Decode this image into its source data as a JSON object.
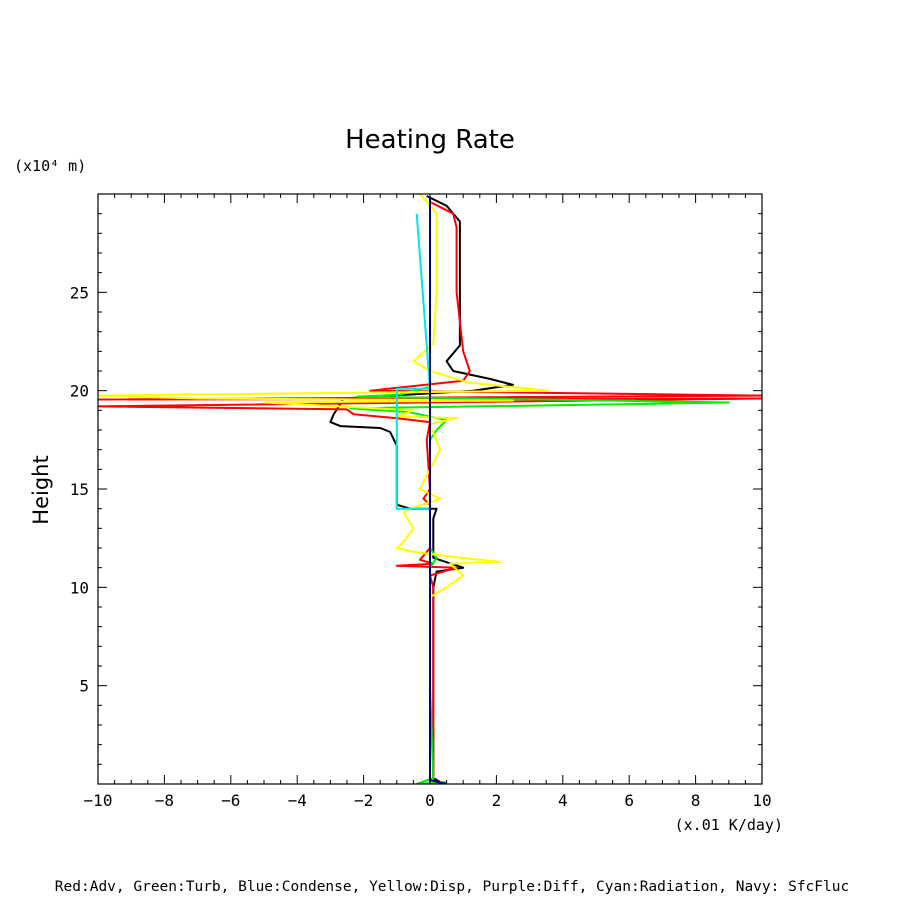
{
  "chart_data": {
    "type": "line",
    "title": "Heating Rate",
    "xlabel": "(x.01 K/day)",
    "ylabel": "Height",
    "y_unit": "(x10⁴ m)",
    "xlim": [
      -10,
      10
    ],
    "ylim": [
      0,
      30
    ],
    "x_ticks": [
      -10,
      -8,
      -6,
      -4,
      -2,
      0,
      2,
      4,
      6,
      8,
      10
    ],
    "y_ticks": [
      5,
      10,
      15,
      20,
      25
    ],
    "grid": false,
    "legend_text": "Red:Adv, Green:Turb, Blue:Condense, Yellow:Disp, Purple:Diff, Cyan:Radiation, Navy: SfcFluc",
    "series": [
      {
        "name": "Black",
        "color": "#000000",
        "points": [
          [
            -0.1,
            29.9
          ],
          [
            0.5,
            29.4
          ],
          [
            0.9,
            28.6
          ],
          [
            0.9,
            25
          ],
          [
            0.9,
            22.3
          ],
          [
            0.5,
            21.5
          ],
          [
            0.7,
            21
          ],
          [
            1.8,
            20.6
          ],
          [
            2.5,
            20.3
          ],
          [
            1.3,
            20.0
          ],
          [
            -2.6,
            19.6
          ],
          [
            -2.9,
            18.8
          ],
          [
            -3.0,
            18.4
          ],
          [
            -2.7,
            18.2
          ],
          [
            -1.5,
            18.1
          ],
          [
            -1.2,
            17.9
          ],
          [
            -1.0,
            17.2
          ],
          [
            -1.0,
            15
          ],
          [
            -1.0,
            14.2
          ],
          [
            -0.6,
            14.0
          ],
          [
            0.2,
            14.0
          ],
          [
            0.1,
            13.5
          ],
          [
            0.1,
            11.5
          ],
          [
            1.0,
            11.0
          ],
          [
            0.2,
            10.8
          ],
          [
            0.1,
            10.0
          ],
          [
            0.1,
            5
          ],
          [
            0.1,
            0.3
          ],
          [
            0.3,
            0.1
          ]
        ]
      },
      {
        "name": "Red:Adv",
        "color": "#ff0000",
        "points": [
          [
            0.0,
            29.6
          ],
          [
            0.7,
            29.0
          ],
          [
            0.8,
            28.3
          ],
          [
            0.8,
            25
          ],
          [
            0.9,
            23.5
          ],
          [
            1.0,
            22.0
          ],
          [
            1.2,
            21.0
          ],
          [
            1.0,
            20.5
          ],
          [
            -1.8,
            20.0
          ],
          [
            10.0,
            19.75
          ],
          [
            -10.0,
            19.55
          ],
          [
            10.0,
            19.6
          ],
          [
            -10.0,
            19.2
          ],
          [
            -2.5,
            19.05
          ],
          [
            -2.3,
            18.8
          ],
          [
            -1.0,
            18.6
          ],
          [
            0.0,
            18.4
          ],
          [
            -0.1,
            17.5
          ],
          [
            0.0,
            15
          ],
          [
            -0.2,
            14.5
          ],
          [
            0.0,
            14.2
          ],
          [
            0.0,
            12
          ],
          [
            -0.3,
            11.4
          ],
          [
            0.1,
            11.2
          ],
          [
            -1.0,
            11.1
          ],
          [
            0.8,
            11.0
          ],
          [
            0.0,
            10.6
          ],
          [
            0.1,
            10.0
          ],
          [
            0.1,
            5
          ],
          [
            0.1,
            0.3
          ]
        ]
      },
      {
        "name": "Green:Turb",
        "color": "#00ee00",
        "points": [
          [
            0.0,
            29
          ],
          [
            0.0,
            20.2
          ],
          [
            -0.9,
            19.8
          ],
          [
            -2.2,
            19.7
          ],
          [
            9.0,
            19.4
          ],
          [
            -2.4,
            19.1
          ],
          [
            -0.6,
            18.9
          ],
          [
            0.5,
            18.5
          ],
          [
            0.2,
            18.0
          ],
          [
            0.0,
            17.5
          ],
          [
            0.0,
            12
          ],
          [
            0.2,
            11.5
          ],
          [
            0.0,
            11.0
          ],
          [
            0.0,
            5
          ],
          [
            0.1,
            0.3
          ],
          [
            -0.4,
            0.0
          ],
          [
            0.5,
            0.1
          ]
        ]
      },
      {
        "name": "Yellow:Disp",
        "color": "#ffff00",
        "points": [
          [
            -0.3,
            30.0
          ],
          [
            0.2,
            29.0
          ],
          [
            0.2,
            25
          ],
          [
            0.1,
            22.4
          ],
          [
            -0.5,
            21.5
          ],
          [
            0.0,
            21.0
          ],
          [
            1.2,
            20.4
          ],
          [
            3.6,
            20.0
          ],
          [
            -10.0,
            19.75
          ],
          [
            -7.0,
            19.6
          ],
          [
            2.5,
            19.5
          ],
          [
            -5.0,
            19.4
          ],
          [
            -0.5,
            19.0
          ],
          [
            -1.0,
            18.7
          ],
          [
            0.8,
            18.6
          ],
          [
            0.0,
            18.3
          ],
          [
            0.3,
            17.0
          ],
          [
            0.0,
            16.0
          ],
          [
            -0.3,
            15.0
          ],
          [
            0.3,
            14.5
          ],
          [
            -0.6,
            14.0
          ],
          [
            -0.8,
            13.8
          ],
          [
            -0.5,
            13.0
          ],
          [
            -0.8,
            12.3
          ],
          [
            -1.0,
            12.0
          ],
          [
            -0.5,
            11.8
          ],
          [
            0.9,
            11.5
          ],
          [
            2.1,
            11.3
          ],
          [
            0.6,
            11.2
          ],
          [
            1.0,
            10.6
          ],
          [
            0.5,
            10.0
          ],
          [
            0.0,
            9.5
          ],
          [
            0.0,
            5
          ],
          [
            0.0,
            0.3
          ]
        ]
      },
      {
        "name": "Purple:Diff",
        "color": "#a020f0",
        "points": [
          [
            0.0,
            29.9
          ],
          [
            0.0,
            0.1
          ]
        ]
      },
      {
        "name": "Cyan:Radiation",
        "color": "#00e5e5",
        "points": [
          [
            -0.4,
            29.0
          ],
          [
            0.0,
            20.1
          ],
          [
            -1.0,
            20.1
          ],
          [
            -1.0,
            14.0
          ],
          [
            0.0,
            14.0
          ],
          [
            0.0,
            12
          ],
          [
            0.0,
            5
          ],
          [
            0.0,
            0.2
          ]
        ]
      },
      {
        "name": "Navy: SfcFluc",
        "color": "#000080",
        "points": [
          [
            0.0,
            29.8
          ],
          [
            0.0,
            0.2
          ],
          [
            0.5,
            0.0
          ]
        ]
      }
    ]
  }
}
